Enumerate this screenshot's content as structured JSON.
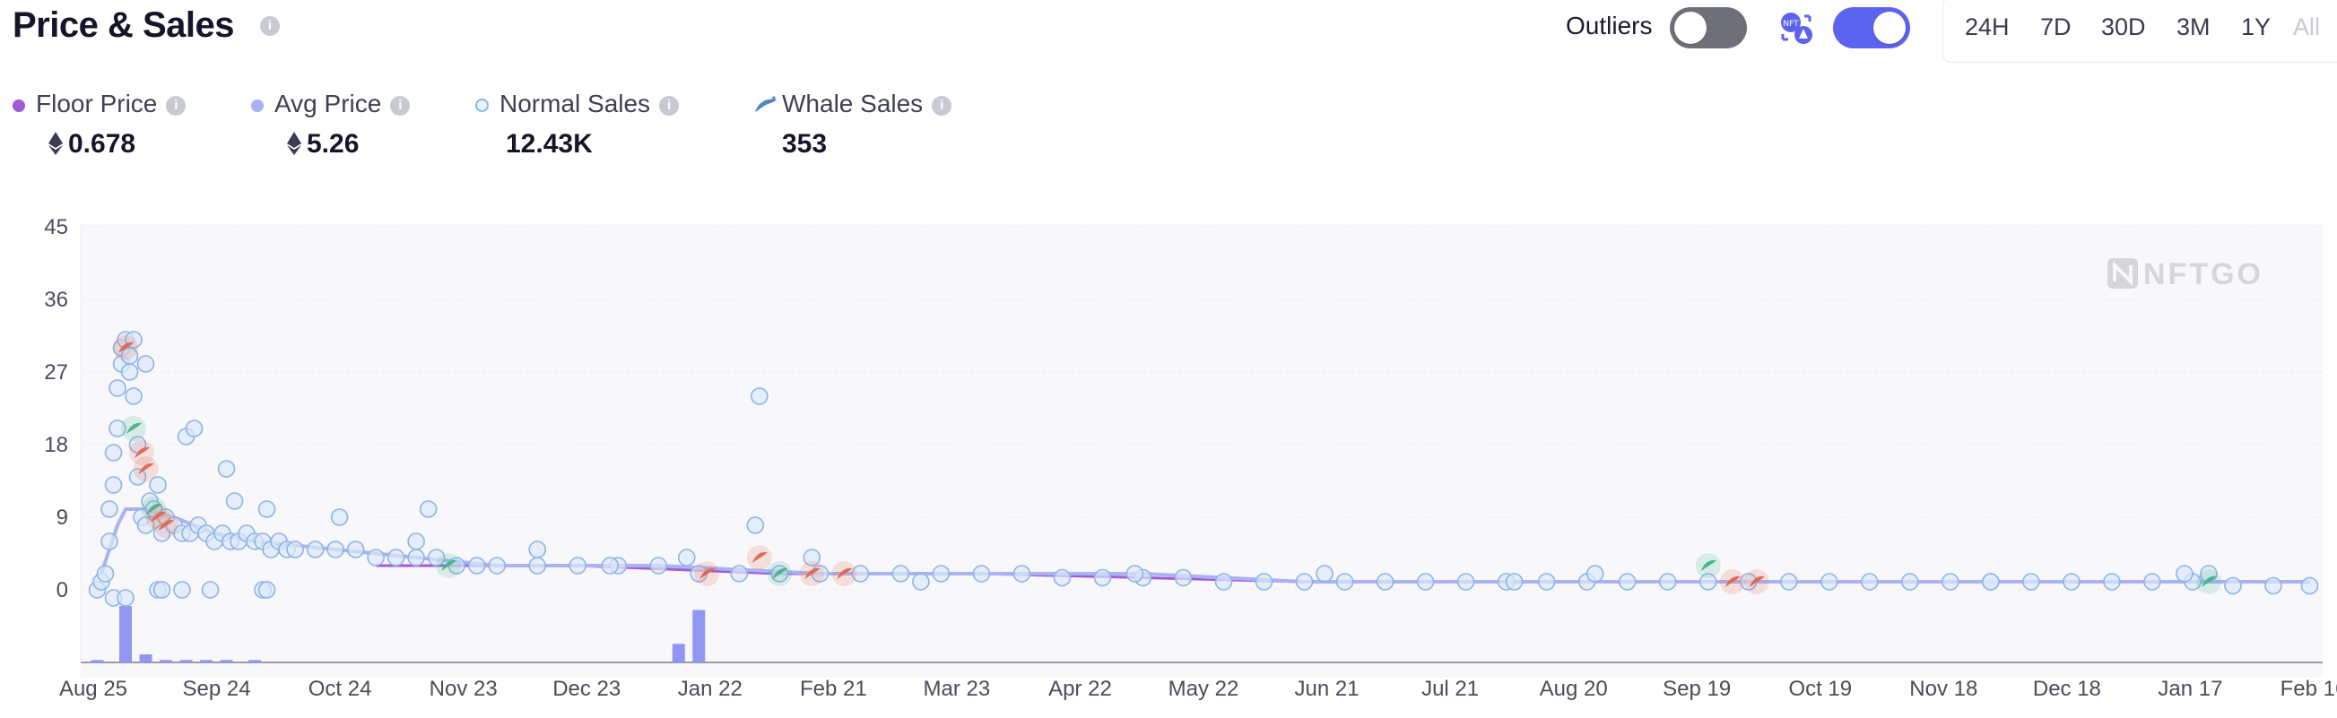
{
  "header": {
    "title": "Price & Sales",
    "outliers_label": "Outliers",
    "outliers_on": false,
    "mode_toggle_on": true,
    "ranges": [
      "24H",
      "7D",
      "30D",
      "3M",
      "1Y",
      "All"
    ],
    "disabled_range": "All"
  },
  "legend": {
    "floor": {
      "label": "Floor Price",
      "value": "0.678",
      "color": "#a35ad6"
    },
    "avg": {
      "label": "Avg Price",
      "value": "5.26",
      "color": "#a9b3f4"
    },
    "normal": {
      "label": "Normal Sales",
      "value": "12.43K",
      "color": "#8eb3e6"
    },
    "whale": {
      "label": "Whale Sales",
      "value": "353",
      "color": "#4f86c6"
    }
  },
  "watermark": "NFTGO",
  "chart_data": {
    "type": "scatter",
    "title": "",
    "xlabel": "",
    "ylabel": "",
    "x_ticks": [
      "Aug 25",
      "Sep 24",
      "Oct 24",
      "Nov 23",
      "Dec 23",
      "Jan 22",
      "Feb 21",
      "Mar 23",
      "Apr 22",
      "May 22",
      "Jun 21",
      "Jul 21",
      "Aug 20",
      "Sep 19",
      "Oct 19",
      "Nov 18",
      "Dec 18",
      "Jan 17",
      "Feb 16"
    ],
    "y_ticks": [
      45,
      36,
      27,
      18,
      9,
      0
    ],
    "ylim": [
      -9,
      45
    ],
    "xlim": [
      0,
      550
    ],
    "grid": true,
    "series": [
      {
        "name": "Normal Sales",
        "values": [
          [
            1,
            0
          ],
          [
            2,
            1
          ],
          [
            3,
            2
          ],
          [
            4,
            6
          ],
          [
            4,
            10
          ],
          [
            5,
            13
          ],
          [
            5,
            17
          ],
          [
            6,
            20
          ],
          [
            6,
            25
          ],
          [
            7,
            28
          ],
          [
            7,
            30
          ],
          [
            8,
            31
          ],
          [
            9,
            27
          ],
          [
            9,
            29
          ],
          [
            10,
            31
          ],
          [
            10,
            24
          ],
          [
            11,
            18
          ],
          [
            11,
            14
          ],
          [
            12,
            9
          ],
          [
            13,
            8
          ],
          [
            13,
            28
          ],
          [
            14,
            11
          ],
          [
            15,
            10
          ],
          [
            16,
            13
          ],
          [
            17,
            7
          ],
          [
            18,
            9
          ],
          [
            20,
            8
          ],
          [
            22,
            7
          ],
          [
            24,
            7
          ],
          [
            26,
            8
          ],
          [
            28,
            7
          ],
          [
            30,
            6
          ],
          [
            32,
            7
          ],
          [
            34,
            6
          ],
          [
            36,
            6
          ],
          [
            38,
            7
          ],
          [
            40,
            6
          ],
          [
            42,
            6
          ],
          [
            44,
            5
          ],
          [
            46,
            6
          ],
          [
            48,
            5
          ],
          [
            50,
            5
          ],
          [
            55,
            5
          ],
          [
            60,
            5
          ],
          [
            65,
            5
          ],
          [
            70,
            4
          ],
          [
            75,
            4
          ],
          [
            80,
            4
          ],
          [
            85,
            4
          ],
          [
            90,
            3
          ],
          [
            95,
            3
          ],
          [
            100,
            3
          ],
          [
            110,
            3
          ],
          [
            120,
            3
          ],
          [
            130,
            3
          ],
          [
            140,
            3
          ],
          [
            150,
            2
          ],
          [
            160,
            2
          ],
          [
            170,
            2
          ],
          [
            180,
            2
          ],
          [
            190,
            2
          ],
          [
            200,
            2
          ],
          [
            210,
            2
          ],
          [
            220,
            2
          ],
          [
            230,
            2
          ],
          [
            240,
            1.5
          ],
          [
            250,
            1.5
          ],
          [
            260,
            1.5
          ],
          [
            270,
            1.5
          ],
          [
            280,
            1
          ],
          [
            290,
            1
          ],
          [
            300,
            1
          ],
          [
            310,
            1
          ],
          [
            320,
            1
          ],
          [
            330,
            1
          ],
          [
            340,
            1
          ],
          [
            350,
            1
          ],
          [
            360,
            1
          ],
          [
            370,
            1
          ],
          [
            380,
            1
          ],
          [
            390,
            1
          ],
          [
            400,
            1
          ],
          [
            410,
            1
          ],
          [
            420,
            1
          ],
          [
            430,
            1
          ],
          [
            440,
            1
          ],
          [
            450,
            1
          ],
          [
            460,
            1
          ],
          [
            470,
            1
          ],
          [
            480,
            1
          ],
          [
            490,
            1
          ],
          [
            500,
            1
          ],
          [
            510,
            1
          ],
          [
            520,
            1
          ],
          [
            530,
            0.5
          ],
          [
            540,
            0.5
          ],
          [
            549,
            0.5
          ],
          [
            23,
            19
          ],
          [
            25,
            20
          ],
          [
            33,
            15
          ],
          [
            35,
            11
          ],
          [
            43,
            10
          ],
          [
            61,
            9
          ],
          [
            83,
            10
          ],
          [
            80,
            6
          ],
          [
            110,
            5
          ],
          [
            128,
            3
          ],
          [
            164,
            8
          ],
          [
            165,
            24
          ],
          [
            147,
            4
          ],
          [
            178,
            4
          ],
          [
            205,
            1
          ],
          [
            258,
            2
          ],
          [
            305,
            2
          ],
          [
            352,
            1
          ],
          [
            372,
            2
          ],
          [
            470,
            1
          ],
          [
            518,
            2
          ],
          [
            524,
            2
          ],
          [
            5,
            -1
          ],
          [
            8,
            -1
          ],
          [
            16,
            0
          ],
          [
            17,
            0
          ],
          [
            22,
            0
          ],
          [
            29,
            0
          ],
          [
            42,
            0
          ],
          [
            43,
            0
          ]
        ]
      },
      {
        "name": "Whale Sales",
        "values": [
          [
            8,
            30
          ],
          [
            10,
            20
          ],
          [
            12,
            17
          ],
          [
            13,
            15
          ],
          [
            15,
            10
          ],
          [
            16,
            9
          ],
          [
            18,
            8
          ],
          [
            88,
            3
          ],
          [
            152,
            2
          ],
          [
            165,
            4
          ],
          [
            170,
            2
          ],
          [
            178,
            2
          ],
          [
            186,
            2
          ],
          [
            400,
            3
          ],
          [
            406,
            1
          ],
          [
            412,
            1
          ],
          [
            524,
            1
          ]
        ]
      },
      {
        "name": "Floor Price",
        "values": [
          [
            70,
            3
          ],
          [
            120,
            3
          ],
          [
            170,
            2
          ],
          [
            220,
            2
          ],
          [
            300,
            1
          ],
          [
            370,
            1
          ],
          [
            440,
            1
          ],
          [
            549,
            1
          ]
        ]
      },
      {
        "name": "Avg Price",
        "values": [
          [
            2,
            2
          ],
          [
            6,
            8
          ],
          [
            8,
            10
          ],
          [
            12,
            10
          ],
          [
            20,
            9
          ],
          [
            30,
            7
          ],
          [
            40,
            6
          ],
          [
            60,
            5
          ],
          [
            80,
            4
          ],
          [
            100,
            3
          ],
          [
            140,
            3
          ],
          [
            180,
            2
          ],
          [
            220,
            2
          ],
          [
            260,
            2
          ],
          [
            300,
            1
          ],
          [
            340,
            1
          ],
          [
            380,
            1
          ],
          [
            420,
            1
          ],
          [
            460,
            1
          ],
          [
            500,
            1
          ],
          [
            549,
            1
          ]
        ]
      },
      {
        "name": "Volume",
        "values": [
          [
            1,
            0.3
          ],
          [
            8,
            7
          ],
          [
            13,
            1
          ],
          [
            18,
            0.3
          ],
          [
            23,
            0.3
          ],
          [
            28,
            0.3
          ],
          [
            33,
            0.3
          ],
          [
            40,
            0.3
          ],
          [
            145,
            2.3
          ],
          [
            150,
            6.5
          ]
        ]
      }
    ]
  }
}
